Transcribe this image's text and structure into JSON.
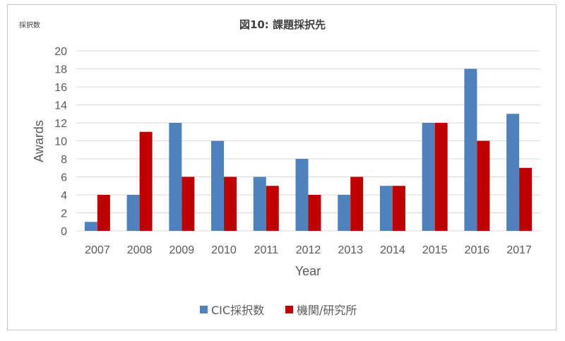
{
  "chart_data": {
    "type": "bar",
    "title": "図10: 課題採択先",
    "corner_label": "採択数",
    "xlabel": "Year",
    "ylabel": "Awards",
    "ylim": [
      0,
      20
    ],
    "yticks": [
      "0",
      "2",
      "4",
      "6",
      "8",
      "10",
      "12",
      "14",
      "16",
      "18",
      "20"
    ],
    "categories": [
      "2007",
      "2008",
      "2009",
      "2010",
      "2011",
      "2012",
      "2013",
      "2014",
      "2015",
      "2016",
      "2017"
    ],
    "series": [
      {
        "name": "CIC採択数",
        "color": "#4f81bd",
        "values": [
          1,
          4,
          12,
          10,
          6,
          8,
          4,
          5,
          12,
          18,
          13
        ]
      },
      {
        "name": "機関/研究所",
        "color": "#c00000",
        "values": [
          4,
          11,
          6,
          6,
          5,
          4,
          6,
          5,
          12,
          10,
          7
        ]
      }
    ],
    "grid": true,
    "legend_position": "bottom"
  }
}
